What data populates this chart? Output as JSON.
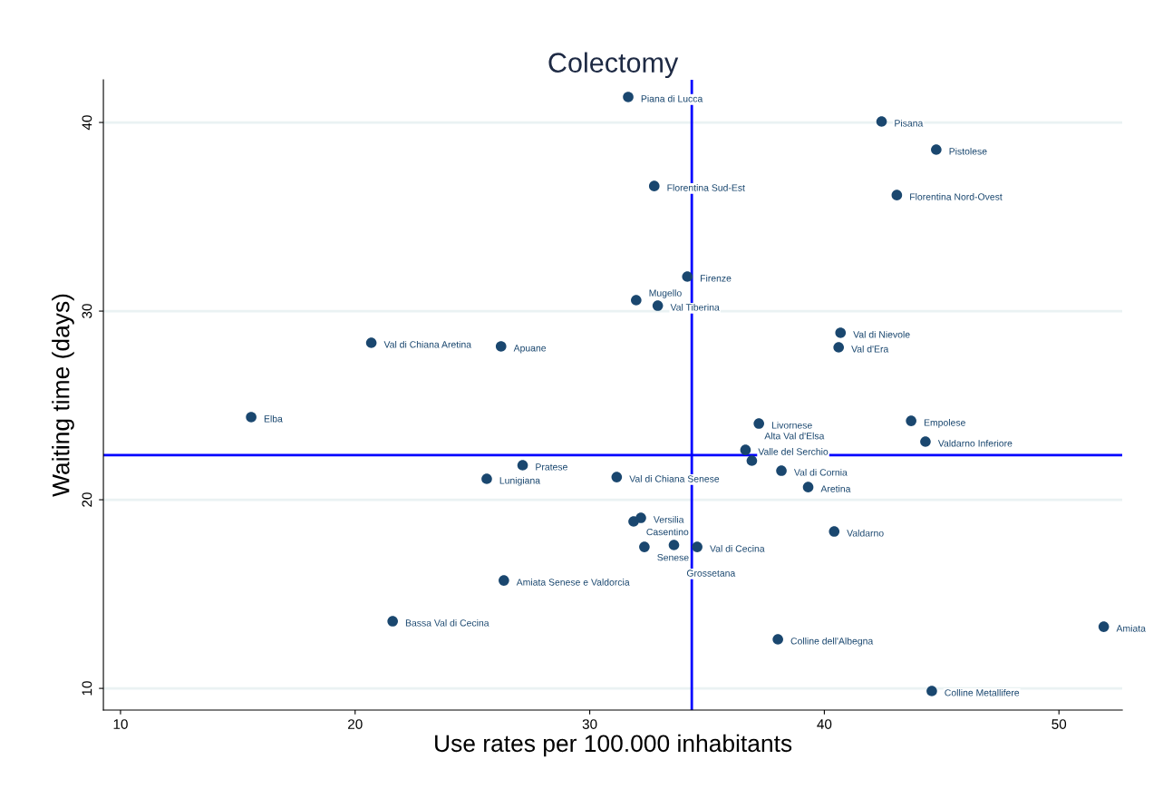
{
  "chart_data": {
    "type": "scatter",
    "title": "Colectomy",
    "xlabel": "Use rates per 100.000 inhabitants",
    "ylabel": "Waiting time (days)",
    "xlim": [
      9.27,
      52.7
    ],
    "ylim": [
      8.85,
      42.26
    ],
    "xticks": [
      10,
      20,
      30,
      40,
      50
    ],
    "yticks": [
      10,
      20,
      30,
      40
    ],
    "grid": "y",
    "marker": "circle",
    "series": [
      {
        "color": "#1a476f",
        "x": [
          31.64,
          42.44,
          44.77,
          32.75,
          43.09,
          34.16,
          31.98,
          32.9,
          20.69,
          26.22,
          40.69,
          40.61,
          15.57,
          37.21,
          43.7,
          44.31,
          36.64,
          36.91,
          38.17,
          39.31,
          27.14,
          25.61,
          31.15,
          32.18,
          31.87,
          40.42,
          32.33,
          33.59,
          34.58,
          26.34,
          21.6,
          38.02,
          51.91,
          44.58
        ],
        "values": [
          41.35,
          40.05,
          38.56,
          36.63,
          36.15,
          31.83,
          30.58,
          30.29,
          28.32,
          28.13,
          28.85,
          28.08,
          24.38,
          24.04,
          24.18,
          23.08,
          22.64,
          22.07,
          21.54,
          20.67,
          21.83,
          21.11,
          21.2,
          19.04,
          18.85,
          18.32,
          17.5,
          17.6,
          17.5,
          15.72,
          13.56,
          12.6,
          13.27,
          9.86
        ]
      }
    ],
    "ref_lines": [
      {
        "axis": "x",
        "value": 34.35,
        "color": "#0000ff"
      },
      {
        "axis": "y",
        "value": 22.36,
        "color": "#0000ff"
      }
    ],
    "annotations": [
      {
        "text": "Piana di Lucca",
        "x": 31.64,
        "y": 41.35
      },
      {
        "text": "Pisana",
        "x": 42.44,
        "y": 40.05
      },
      {
        "text": "Pistolese",
        "x": 44.77,
        "y": 38.56
      },
      {
        "text": "Florentina Sud-Est",
        "x": 32.75,
        "y": 36.63
      },
      {
        "text": "Florentina Nord-Ovest",
        "x": 43.09,
        "y": 36.15
      },
      {
        "text": "Firenze",
        "x": 34.16,
        "y": 31.83
      },
      {
        "text": "Mugello",
        "x": 31.98,
        "y": 30.58
      },
      {
        "text": "Val Tiberina",
        "x": 32.9,
        "y": 30.29
      },
      {
        "text": "Val di Chiana Aretina",
        "x": 20.69,
        "y": 28.32
      },
      {
        "text": "Apuane",
        "x": 26.22,
        "y": 28.13
      },
      {
        "text": "Val di Nievole",
        "x": 40.69,
        "y": 28.85
      },
      {
        "text": "Val d'Era",
        "x": 40.61,
        "y": 28.08
      },
      {
        "text": "Elba",
        "x": 15.57,
        "y": 24.38
      },
      {
        "text": "Livornese",
        "x": 37.21,
        "y": 24.04
      },
      {
        "text": "Empolese",
        "x": 43.7,
        "y": 24.18
      },
      {
        "text": "Valdarno Inferiore",
        "x": 44.31,
        "y": 23.08
      },
      {
        "text": "Valle del Serchio",
        "x": 36.64,
        "y": 22.64
      },
      {
        "text": "Alta Val d'Elsa",
        "x": 36.91,
        "y": 22.07
      },
      {
        "text": "Val di Cornia",
        "x": 38.17,
        "y": 21.54
      },
      {
        "text": "Aretina",
        "x": 39.31,
        "y": 20.67
      },
      {
        "text": "Pratese",
        "x": 27.14,
        "y": 21.83
      },
      {
        "text": "Lunigiana",
        "x": 25.61,
        "y": 21.11
      },
      {
        "text": "Val di Chiana Senese",
        "x": 31.15,
        "y": 21.2
      },
      {
        "text": "Versilia",
        "x": 32.18,
        "y": 19.04
      },
      {
        "text": "Casentino",
        "x": 31.87,
        "y": 18.85
      },
      {
        "text": "Valdarno",
        "x": 40.42,
        "y": 18.32
      },
      {
        "text": "Senese",
        "x": 32.33,
        "y": 17.5
      },
      {
        "text": "Grossetana",
        "x": 33.59,
        "y": 17.6
      },
      {
        "text": "Val di Cecina",
        "x": 34.58,
        "y": 17.5
      },
      {
        "text": "Amiata Senese e Valdorcia",
        "x": 26.34,
        "y": 15.72
      },
      {
        "text": "Bassa Val di Cecina",
        "x": 21.6,
        "y": 13.56
      },
      {
        "text": "Colline dell'Albegna",
        "x": 38.02,
        "y": 12.6
      },
      {
        "text": "Amiata",
        "x": 51.91,
        "y": 13.27
      },
      {
        "text": "Colline Metallifere",
        "x": 44.58,
        "y": 9.86
      }
    ]
  }
}
